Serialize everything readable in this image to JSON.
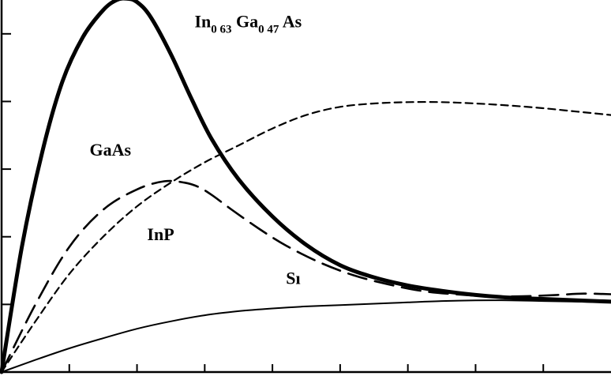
{
  "chart_data": {
    "type": "line",
    "xlim": [
      0,
      9
    ],
    "ylim": [
      0,
      5.5
    ],
    "x_ticks": [
      1,
      2,
      3,
      4,
      5,
      6,
      7,
      8
    ],
    "y_ticks": [
      1,
      2,
      3,
      4,
      5
    ],
    "grid": false,
    "legend": "none",
    "series": [
      {
        "key": "ingaas",
        "style": "thick-solid",
        "label_base1": "In",
        "label_sub1": "0 63",
        "label_base2": " Ga",
        "label_sub2": "0 47",
        "label_base3": " As",
        "x": [
          0,
          0.3,
          0.6,
          0.9,
          1.2,
          1.5,
          1.7,
          1.85,
          2.0,
          2.2,
          2.5,
          2.8,
          3.1,
          3.5,
          4.0,
          4.5,
          5.0,
          5.5,
          6.0,
          6.5,
          7.0,
          7.5,
          8.0,
          8.5,
          9.0
        ],
        "y": [
          0,
          1.85,
          3.25,
          4.3,
          4.95,
          5.35,
          5.5,
          5.52,
          5.47,
          5.25,
          4.7,
          4.05,
          3.45,
          2.85,
          2.3,
          1.88,
          1.58,
          1.4,
          1.28,
          1.2,
          1.14,
          1.1,
          1.08,
          1.06,
          1.04
        ]
      },
      {
        "key": "gaas",
        "style": "long-dash",
        "label": "GaAs",
        "x": [
          0,
          0.5,
          1.0,
          1.5,
          2.0,
          2.4,
          2.7,
          2.9,
          3.1,
          3.4,
          3.8,
          4.2,
          4.7,
          5.2,
          5.7,
          6.2,
          6.7,
          7.2,
          7.7,
          8.2,
          8.6,
          9.0
        ],
        "y": [
          0,
          1.0,
          1.85,
          2.4,
          2.7,
          2.82,
          2.8,
          2.74,
          2.62,
          2.4,
          2.12,
          1.87,
          1.62,
          1.43,
          1.3,
          1.2,
          1.15,
          1.12,
          1.12,
          1.14,
          1.16,
          1.15
        ]
      },
      {
        "key": "inp",
        "style": "short-dash",
        "label": "InP",
        "x": [
          0,
          0.5,
          1.0,
          1.5,
          2.0,
          2.5,
          3.0,
          3.5,
          4.0,
          4.5,
          5.0,
          5.5,
          6.0,
          6.5,
          7.0,
          7.5,
          8.0,
          8.5,
          9.0
        ],
        "y": [
          0,
          0.75,
          1.45,
          2.0,
          2.45,
          2.8,
          3.1,
          3.35,
          3.6,
          3.8,
          3.92,
          3.97,
          3.99,
          3.99,
          3.97,
          3.94,
          3.9,
          3.85,
          3.8
        ]
      },
      {
        "key": "si",
        "style": "thin-solid",
        "label": "Sı",
        "x": [
          0,
          0.5,
          1.0,
          1.5,
          2.0,
          2.5,
          3.0,
          3.5,
          4.0,
          4.5,
          5.0,
          5.5,
          6.0,
          6.5,
          7.0,
          7.5,
          8.0,
          8.5,
          9.0
        ],
        "y": [
          0,
          0.18,
          0.35,
          0.5,
          0.64,
          0.75,
          0.84,
          0.9,
          0.94,
          0.97,
          0.99,
          1.01,
          1.03,
          1.05,
          1.06,
          1.06,
          1.05,
          1.04,
          1.03
        ]
      }
    ],
    "label_anchors": {
      "ingaas": [
        2.85,
        5.1
      ],
      "gaas": [
        1.3,
        3.2
      ],
      "inp": [
        2.15,
        1.95
      ],
      "si": [
        4.2,
        1.3
      ]
    }
  }
}
